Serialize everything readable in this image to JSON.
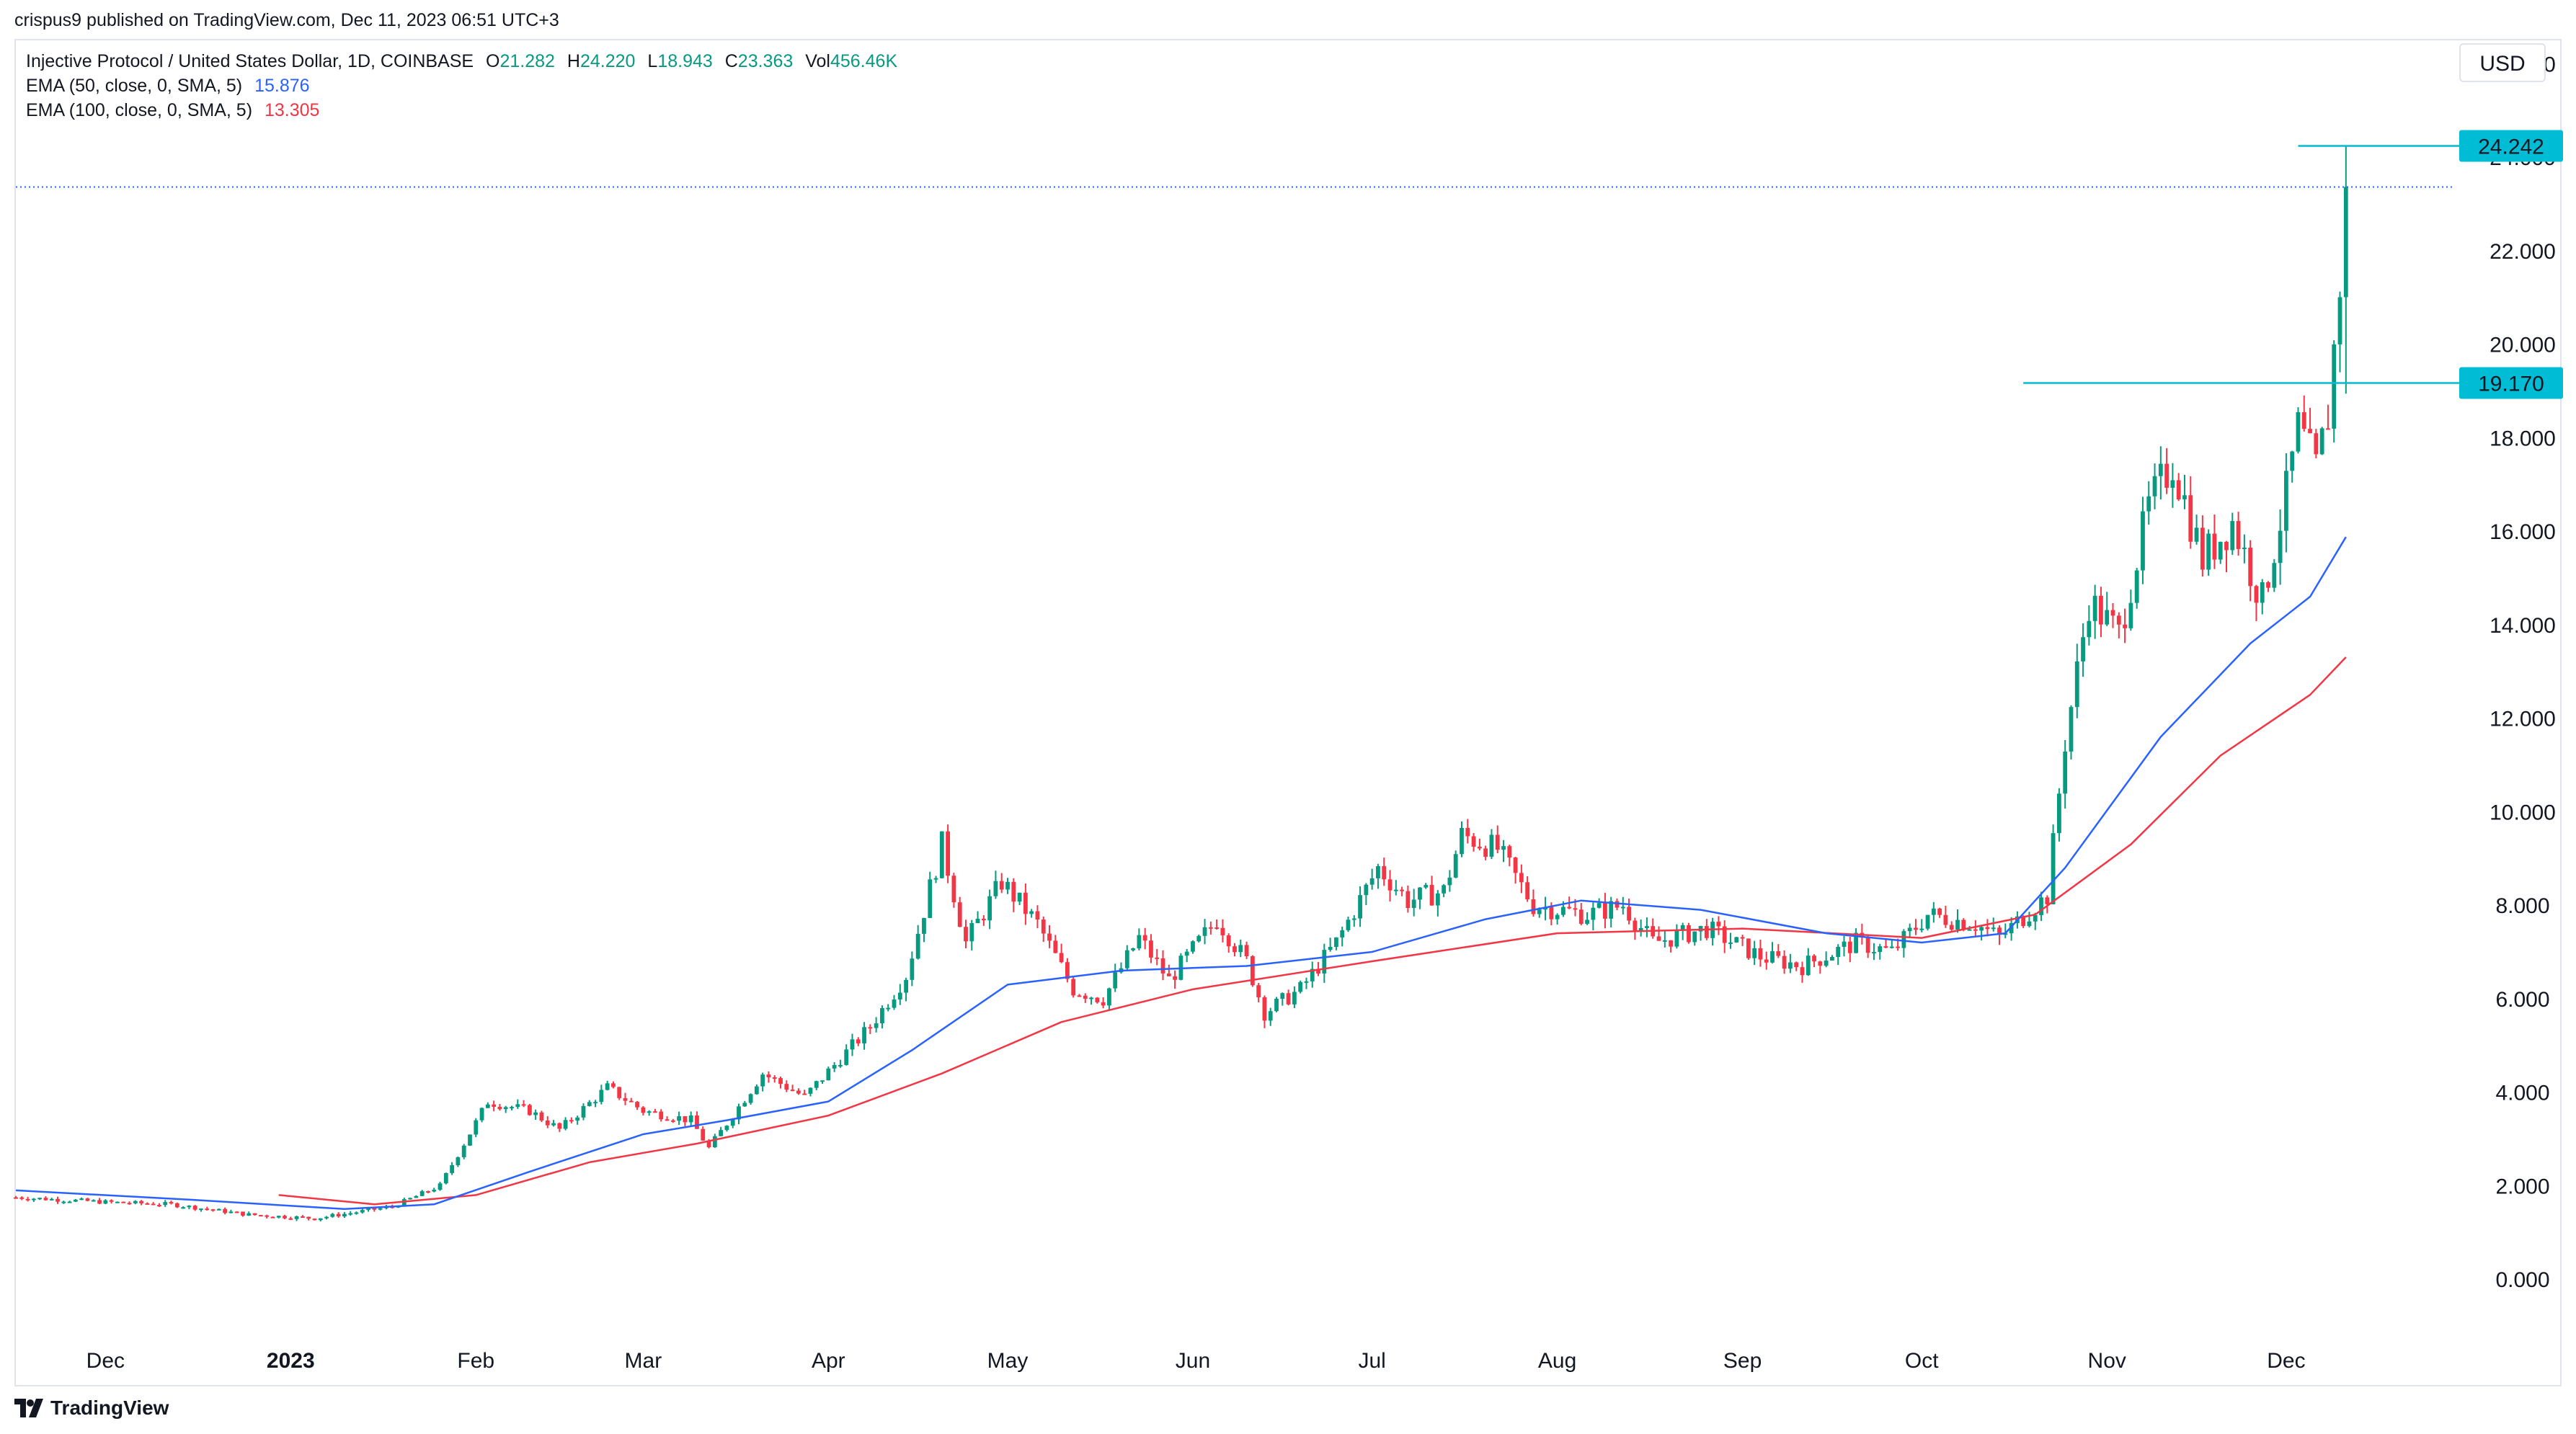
{
  "header": {
    "publisher": "crispus9 published on TradingView.com, Dec 11, 2023 06:51 UTC+3"
  },
  "legend": {
    "symbol": "Injective Protocol / United States Dollar, 1D, COINBASE",
    "o_label": "O",
    "o": "21.282",
    "h_label": "H",
    "h": "24.220",
    "l_label": "L",
    "l": "18.943",
    "c_label": "C",
    "c": "23.363",
    "vol_label": "Vol",
    "vol": "456.46K",
    "ema50": {
      "label": "EMA (50, close, 0, SMA, 5)",
      "value": "15.876",
      "color": "#2962ff"
    },
    "ema100": {
      "label": "EMA (100, close, 0, SMA, 5)",
      "value": "13.305",
      "color": "#f23645"
    }
  },
  "currency": "USD",
  "footer": {
    "brand": "TradingView",
    "logo_icon": "tradingview-logo-icon"
  },
  "colors": {
    "up": "#089981",
    "down": "#f23645",
    "ema50": "#2962ff",
    "ema100": "#f23645",
    "level": "#00bcd4",
    "last_price_line": "#2962ff"
  },
  "chart_data": {
    "type": "candlestick",
    "title": "Injective Protocol / United States Dollar, 1D, COINBASE",
    "x_axis": {
      "labels": [
        "Dec",
        "2023",
        "Feb",
        "Mar",
        "Apr",
        "May",
        "Jun",
        "Jul",
        "Aug",
        "Sep",
        "Oct",
        "Nov",
        "Dec"
      ],
      "dates": [
        "2022-12-01",
        "2023-01-01",
        "2023-02-01",
        "2023-03-01",
        "2023-04-01",
        "2023-05-01",
        "2023-06-01",
        "2023-07-01",
        "2023-08-01",
        "2023-09-01",
        "2023-10-01",
        "2023-11-01",
        "2023-12-01"
      ],
      "range": [
        "2022-11-16",
        "2023-12-29"
      ]
    },
    "y_axis": {
      "ticks": [
        "0.000",
        "2.000",
        "4.000",
        "6.000",
        "8.000",
        "10.000",
        "12.000",
        "14.000",
        "16.000",
        "18.000",
        "20.000",
        "22.000",
        "24.000",
        "26.000"
      ],
      "range": [
        -1.0,
        26.5
      ],
      "side": "right"
    },
    "price_levels": [
      {
        "value": 24.242,
        "label": "24.242",
        "from": "2023-12-03"
      },
      {
        "value": 19.17,
        "label": "19.170",
        "from": "2023-10-18"
      }
    ],
    "last_price": 23.363,
    "series": [
      {
        "name": "Injective Protocol / United States Dollar",
        "kind": "ohlc-close-path",
        "points": [
          [
            "2022-11-16",
            1.75
          ],
          [
            "2022-12-01",
            1.65
          ],
          [
            "2022-12-12",
            1.6
          ],
          [
            "2022-12-25",
            1.38
          ],
          [
            "2023-01-05",
            1.3
          ],
          [
            "2023-01-18",
            1.55
          ],
          [
            "2023-01-26",
            2.0
          ],
          [
            "2023-02-03",
            3.8
          ],
          [
            "2023-02-10",
            3.6
          ],
          [
            "2023-02-15",
            3.2
          ],
          [
            "2023-02-23",
            4.1
          ],
          [
            "2023-03-01",
            3.6
          ],
          [
            "2023-03-09",
            3.4
          ],
          [
            "2023-03-12",
            2.8
          ],
          [
            "2023-03-21",
            4.4
          ],
          [
            "2023-03-28",
            3.9
          ],
          [
            "2023-04-08",
            5.4
          ],
          [
            "2023-04-14",
            6.5
          ],
          [
            "2023-04-20",
            9.3
          ],
          [
            "2023-04-24",
            7.2
          ],
          [
            "2023-04-30",
            8.5
          ],
          [
            "2023-05-06",
            7.6
          ],
          [
            "2023-05-12",
            6.2
          ],
          [
            "2023-05-17",
            6.0
          ],
          [
            "2023-05-23",
            7.3
          ],
          [
            "2023-05-28",
            6.4
          ],
          [
            "2023-06-05",
            7.7
          ],
          [
            "2023-06-10",
            6.8
          ],
          [
            "2023-06-13",
            5.7
          ],
          [
            "2023-06-19",
            6.2
          ],
          [
            "2023-06-25",
            7.2
          ],
          [
            "2023-07-02",
            8.8
          ],
          [
            "2023-07-07",
            8.1
          ],
          [
            "2023-07-13",
            8.3
          ],
          [
            "2023-07-16",
            9.5
          ],
          [
            "2023-07-22",
            9.2
          ],
          [
            "2023-07-28",
            8.0
          ],
          [
            "2023-08-06",
            7.8
          ],
          [
            "2023-08-12",
            8.0
          ],
          [
            "2023-08-17",
            7.2
          ],
          [
            "2023-08-26",
            7.5
          ],
          [
            "2023-09-04",
            6.9
          ],
          [
            "2023-09-11",
            6.7
          ],
          [
            "2023-09-20",
            7.2
          ],
          [
            "2023-09-26",
            7.0
          ],
          [
            "2023-10-02",
            7.8
          ],
          [
            "2023-10-10",
            7.6
          ],
          [
            "2023-10-14",
            7.3
          ],
          [
            "2023-10-22",
            8.2
          ],
          [
            "2023-10-25",
            11.5
          ],
          [
            "2023-10-29",
            14.5
          ],
          [
            "2023-11-03",
            13.8
          ],
          [
            "2023-11-08",
            16.5
          ],
          [
            "2023-11-12",
            17.5
          ],
          [
            "2023-11-17",
            15.4
          ],
          [
            "2023-11-22",
            16.2
          ],
          [
            "2023-11-27",
            14.5
          ],
          [
            "2023-12-01",
            16.8
          ],
          [
            "2023-12-03",
            18.2
          ],
          [
            "2023-12-06",
            17.3
          ],
          [
            "2023-12-08",
            18.5
          ],
          [
            "2023-12-10",
            21.3
          ],
          [
            "2023-12-11",
            23.363
          ]
        ]
      },
      {
        "name": "EMA (50, close, 0, SMA, 5)",
        "points": [
          [
            "2022-11-16",
            1.9
          ],
          [
            "2022-12-15",
            1.7
          ],
          [
            "2023-01-10",
            1.5
          ],
          [
            "2023-01-25",
            1.6
          ],
          [
            "2023-02-10",
            2.3
          ],
          [
            "2023-03-01",
            3.1
          ],
          [
            "2023-03-15",
            3.4
          ],
          [
            "2023-04-01",
            3.8
          ],
          [
            "2023-04-15",
            4.9
          ],
          [
            "2023-05-01",
            6.3
          ],
          [
            "2023-05-20",
            6.6
          ],
          [
            "2023-06-10",
            6.7
          ],
          [
            "2023-07-01",
            7.0
          ],
          [
            "2023-07-20",
            7.7
          ],
          [
            "2023-08-05",
            8.1
          ],
          [
            "2023-08-25",
            7.9
          ],
          [
            "2023-09-15",
            7.4
          ],
          [
            "2023-10-01",
            7.2
          ],
          [
            "2023-10-15",
            7.4
          ],
          [
            "2023-10-25",
            8.8
          ],
          [
            "2023-11-10",
            11.6
          ],
          [
            "2023-11-25",
            13.6
          ],
          [
            "2023-12-05",
            14.6
          ],
          [
            "2023-12-11",
            15.876
          ]
        ]
      },
      {
        "name": "EMA (100, close, 0, SMA, 5)",
        "points": [
          [
            "2022-12-30",
            1.8
          ],
          [
            "2023-01-15",
            1.6
          ],
          [
            "2023-02-01",
            1.8
          ],
          [
            "2023-02-20",
            2.5
          ],
          [
            "2023-03-10",
            2.9
          ],
          [
            "2023-04-01",
            3.5
          ],
          [
            "2023-04-20",
            4.4
          ],
          [
            "2023-05-10",
            5.5
          ],
          [
            "2023-06-01",
            6.2
          ],
          [
            "2023-07-01",
            6.8
          ],
          [
            "2023-08-01",
            7.4
          ],
          [
            "2023-09-01",
            7.5
          ],
          [
            "2023-10-01",
            7.3
          ],
          [
            "2023-10-20",
            7.8
          ],
          [
            "2023-11-05",
            9.3
          ],
          [
            "2023-11-20",
            11.2
          ],
          [
            "2023-12-05",
            12.5
          ],
          [
            "2023-12-11",
            13.305
          ]
        ]
      }
    ]
  }
}
